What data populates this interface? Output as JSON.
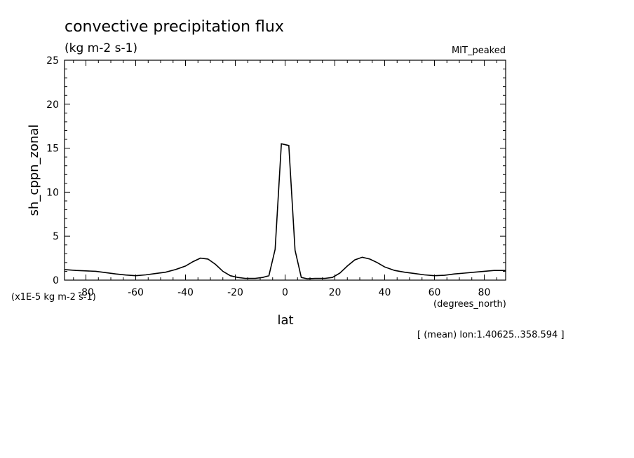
{
  "chart_data": {
    "type": "line",
    "title": "convective precipitation flux",
    "units": "(kg m-2 s-1)",
    "experiment": "MIT_peaked",
    "xlabel": "lat",
    "x_units": "(degrees_north)",
    "ylabel": "sh_cppn_zonal",
    "y_scale_note": "(x1E-5 kg m-2 s-1)",
    "footer": "[ (mean) lon:1.40625..358.594 ]",
    "xlim": [
      -88.6,
      88.6
    ],
    "ylim": [
      0,
      25
    ],
    "xticks": [
      -80,
      -60,
      -40,
      -20,
      0,
      20,
      40,
      60,
      80
    ],
    "xtick_labels": [
      "-80",
      "-60",
      "-40",
      "-20",
      "0",
      "20",
      "40",
      "60",
      "80"
    ],
    "yticks": [
      0,
      5,
      10,
      15,
      20,
      25
    ],
    "ytick_labels": [
      "0",
      "5",
      "10",
      "15",
      "20",
      "25"
    ],
    "grid": false,
    "series": [
      {
        "x": [
          -88.6,
          -84,
          -80,
          -76,
          -72,
          -68,
          -64,
          -60,
          -56,
          -52,
          -48,
          -44,
          -40,
          -37,
          -34,
          -31,
          -28,
          -25,
          -22,
          -19,
          -16,
          -12,
          -9,
          -6.5,
          -4,
          -1.5,
          1.5,
          4,
          6.5,
          9,
          12,
          16,
          19,
          22,
          25,
          28,
          31,
          34,
          37,
          40,
          44,
          48,
          52,
          56,
          60,
          64,
          68,
          72,
          76,
          80,
          84,
          88.6
        ],
        "y": [
          1.2,
          1.1,
          1.05,
          1.0,
          0.85,
          0.7,
          0.58,
          0.5,
          0.6,
          0.75,
          0.9,
          1.2,
          1.6,
          2.1,
          2.5,
          2.4,
          1.8,
          1.0,
          0.5,
          0.3,
          0.2,
          0.2,
          0.3,
          0.5,
          3.5,
          15.5,
          15.3,
          3.4,
          0.3,
          0.15,
          0.2,
          0.2,
          0.3,
          0.8,
          1.6,
          2.3,
          2.6,
          2.4,
          2.0,
          1.5,
          1.1,
          0.9,
          0.75,
          0.6,
          0.5,
          0.55,
          0.7,
          0.8,
          0.9,
          1.0,
          1.1,
          1.1
        ]
      }
    ]
  }
}
